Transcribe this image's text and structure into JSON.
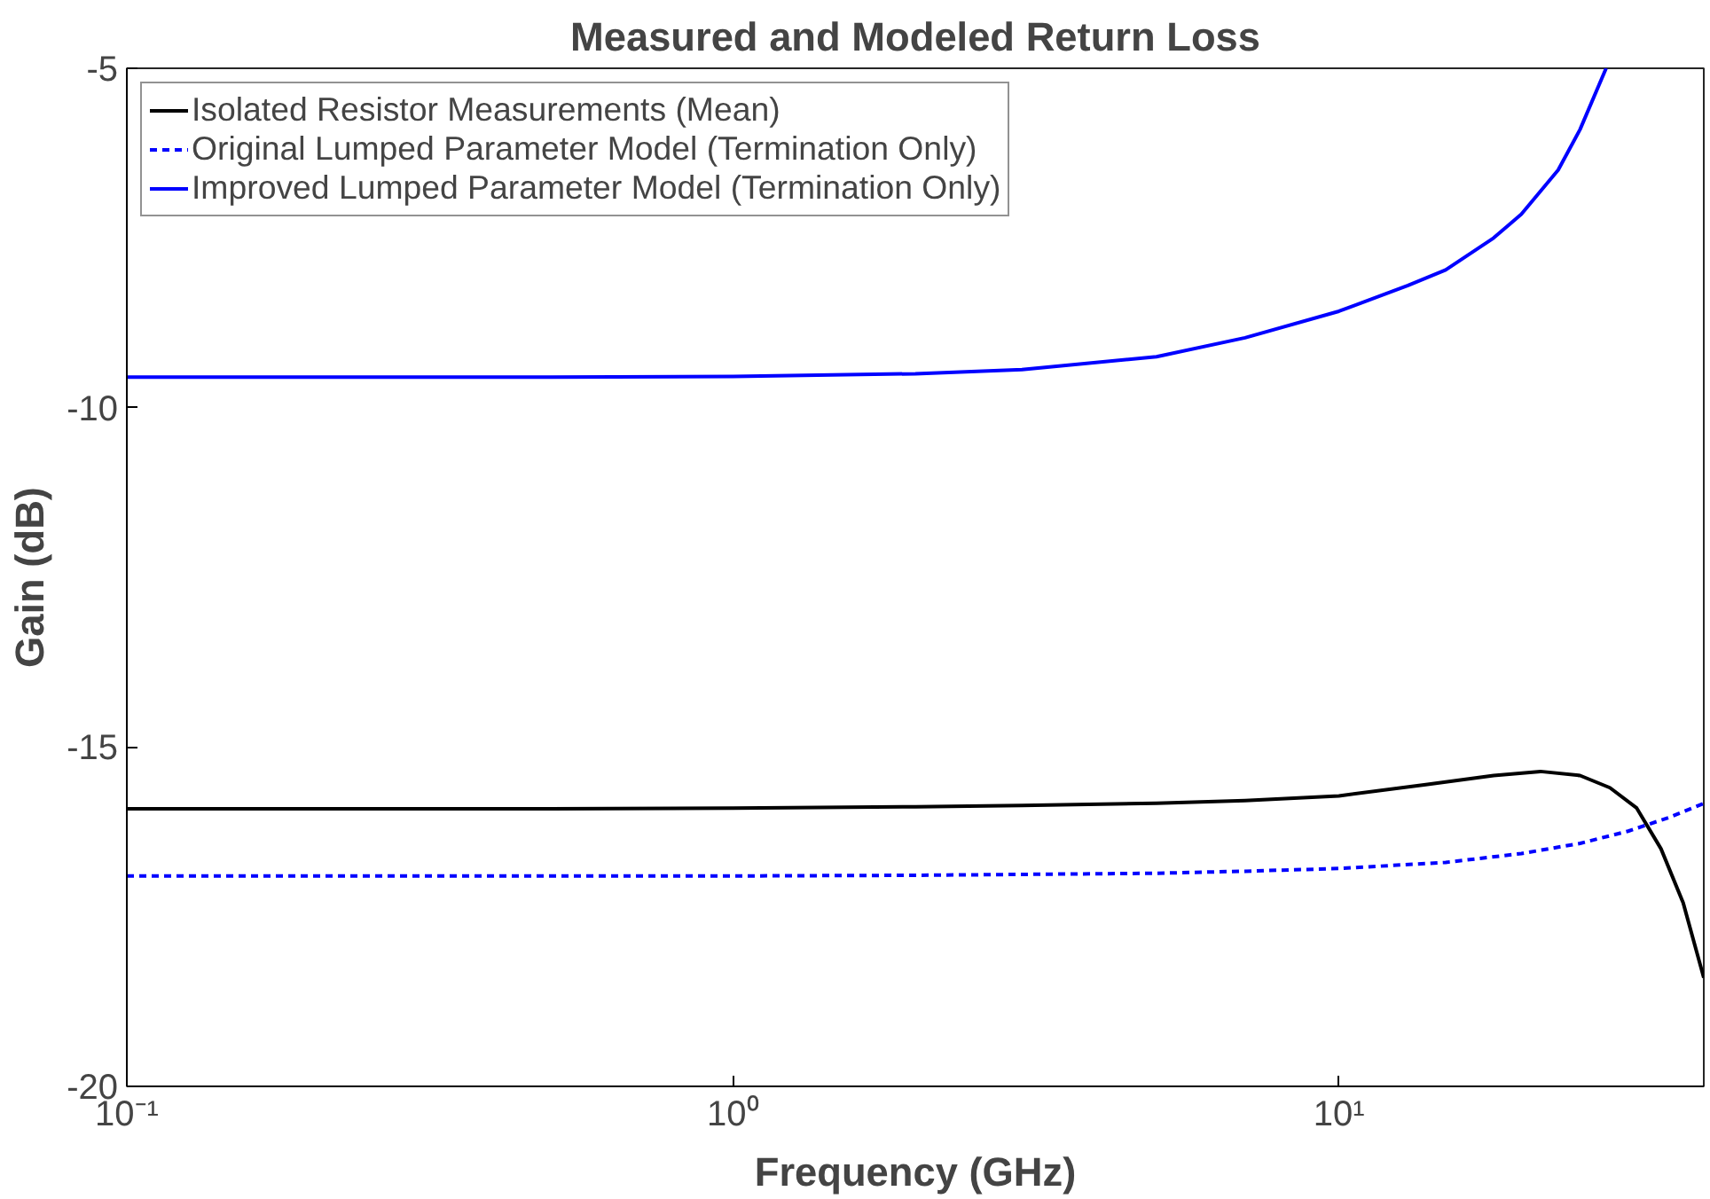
{
  "chart_data": {
    "type": "line",
    "title": "Measured and Modeled Return Loss",
    "xlabel": "Frequency (GHz)",
    "ylabel": "Gain (dB)",
    "log": "x",
    "xlim": [
      0.1,
      40
    ],
    "ylim": [
      -20,
      -5
    ],
    "xticks": [
      {
        "value": 0.1,
        "label": "10⁻¹"
      },
      {
        "value": 1,
        "label": "10⁰"
      },
      {
        "value": 10,
        "label": "10¹"
      }
    ],
    "yticks": [
      -20,
      -15,
      -10,
      -5
    ],
    "grid": false,
    "legend": "top left",
    "marker": "none",
    "series": [
      {
        "name": "Isolated Resistor Measurements (Mean)",
        "color": "#000000",
        "line_style": "solid",
        "x": [
          0.1,
          0.5,
          1,
          2,
          3,
          5,
          7,
          10,
          14,
          18,
          21.5,
          25,
          28,
          31,
          34,
          37,
          40
        ],
        "values": [
          -15.91,
          -15.91,
          -15.9,
          -15.88,
          -15.86,
          -15.83,
          -15.79,
          -15.72,
          -15.55,
          -15.42,
          -15.36,
          -15.42,
          -15.6,
          -15.9,
          -16.5,
          -17.3,
          -18.4
        ]
      },
      {
        "name": "Original Lumped Parameter Model (Termination Only)",
        "color": "#0000ff",
        "line_style": "dashed",
        "x": [
          0.1,
          0.5,
          1,
          2,
          5,
          7,
          10,
          15,
          20,
          25,
          30,
          35,
          40
        ],
        "values": [
          -16.9,
          -16.9,
          -16.9,
          -16.89,
          -16.86,
          -16.83,
          -16.79,
          -16.7,
          -16.57,
          -16.42,
          -16.24,
          -16.04,
          -15.83
        ]
      },
      {
        "name": "Improved Lumped Parameter Model (Termination Only)",
        "color": "#0000ff",
        "line_style": "solid",
        "x": [
          0.1,
          0.5,
          1,
          2,
          3,
          5,
          7,
          10,
          13,
          15,
          18,
          20,
          23,
          25,
          27.6
        ],
        "values": [
          -9.55,
          -9.55,
          -9.54,
          -9.5,
          -9.44,
          -9.25,
          -8.97,
          -8.58,
          -8.2,
          -7.97,
          -7.5,
          -7.15,
          -6.5,
          -5.9,
          -5.0
        ]
      }
    ]
  }
}
